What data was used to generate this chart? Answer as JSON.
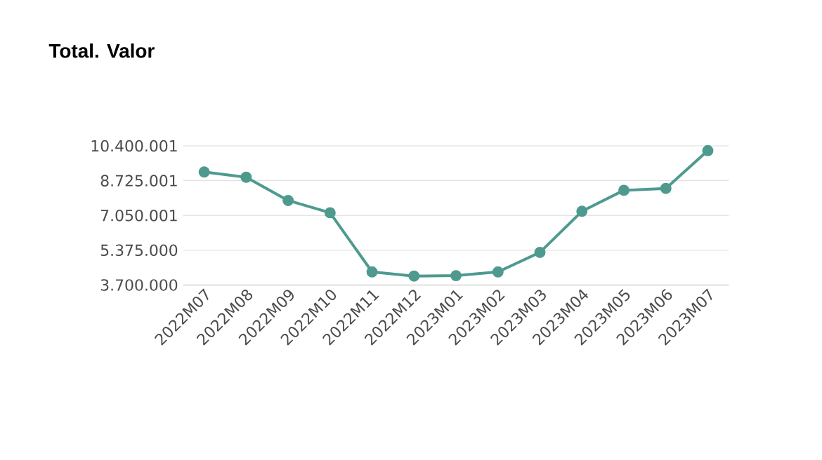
{
  "chart_data": {
    "type": "line",
    "title": "Total. Valor",
    "categories": [
      "2022M07",
      "2022M08",
      "2022M09",
      "2022M10",
      "2022M11",
      "2022M12",
      "2023M01",
      "2023M02",
      "2023M03",
      "2023M04",
      "2023M05",
      "2023M06",
      "2023M07"
    ],
    "series": [
      {
        "color": "#4e9a8f",
        "values": [
          9140000,
          8890000,
          7770000,
          7180000,
          4330000,
          4130000,
          4150000,
          4330000,
          5270000,
          7250000,
          8260000,
          8350000,
          10170000
        ]
      }
    ],
    "ylim": [
      3700000,
      10400001
    ],
    "yticks": [
      {
        "value": 3700000,
        "label": "3.700.000"
      },
      {
        "value": 5375000,
        "label": "5.375.000"
      },
      {
        "value": 7050001,
        "label": "7.050.001"
      },
      {
        "value": 8725001,
        "label": "8.725.001"
      },
      {
        "value": 10400001,
        "label": "10.400.001"
      }
    ],
    "grid": "y",
    "marker": "circle",
    "line_style": "solid"
  }
}
